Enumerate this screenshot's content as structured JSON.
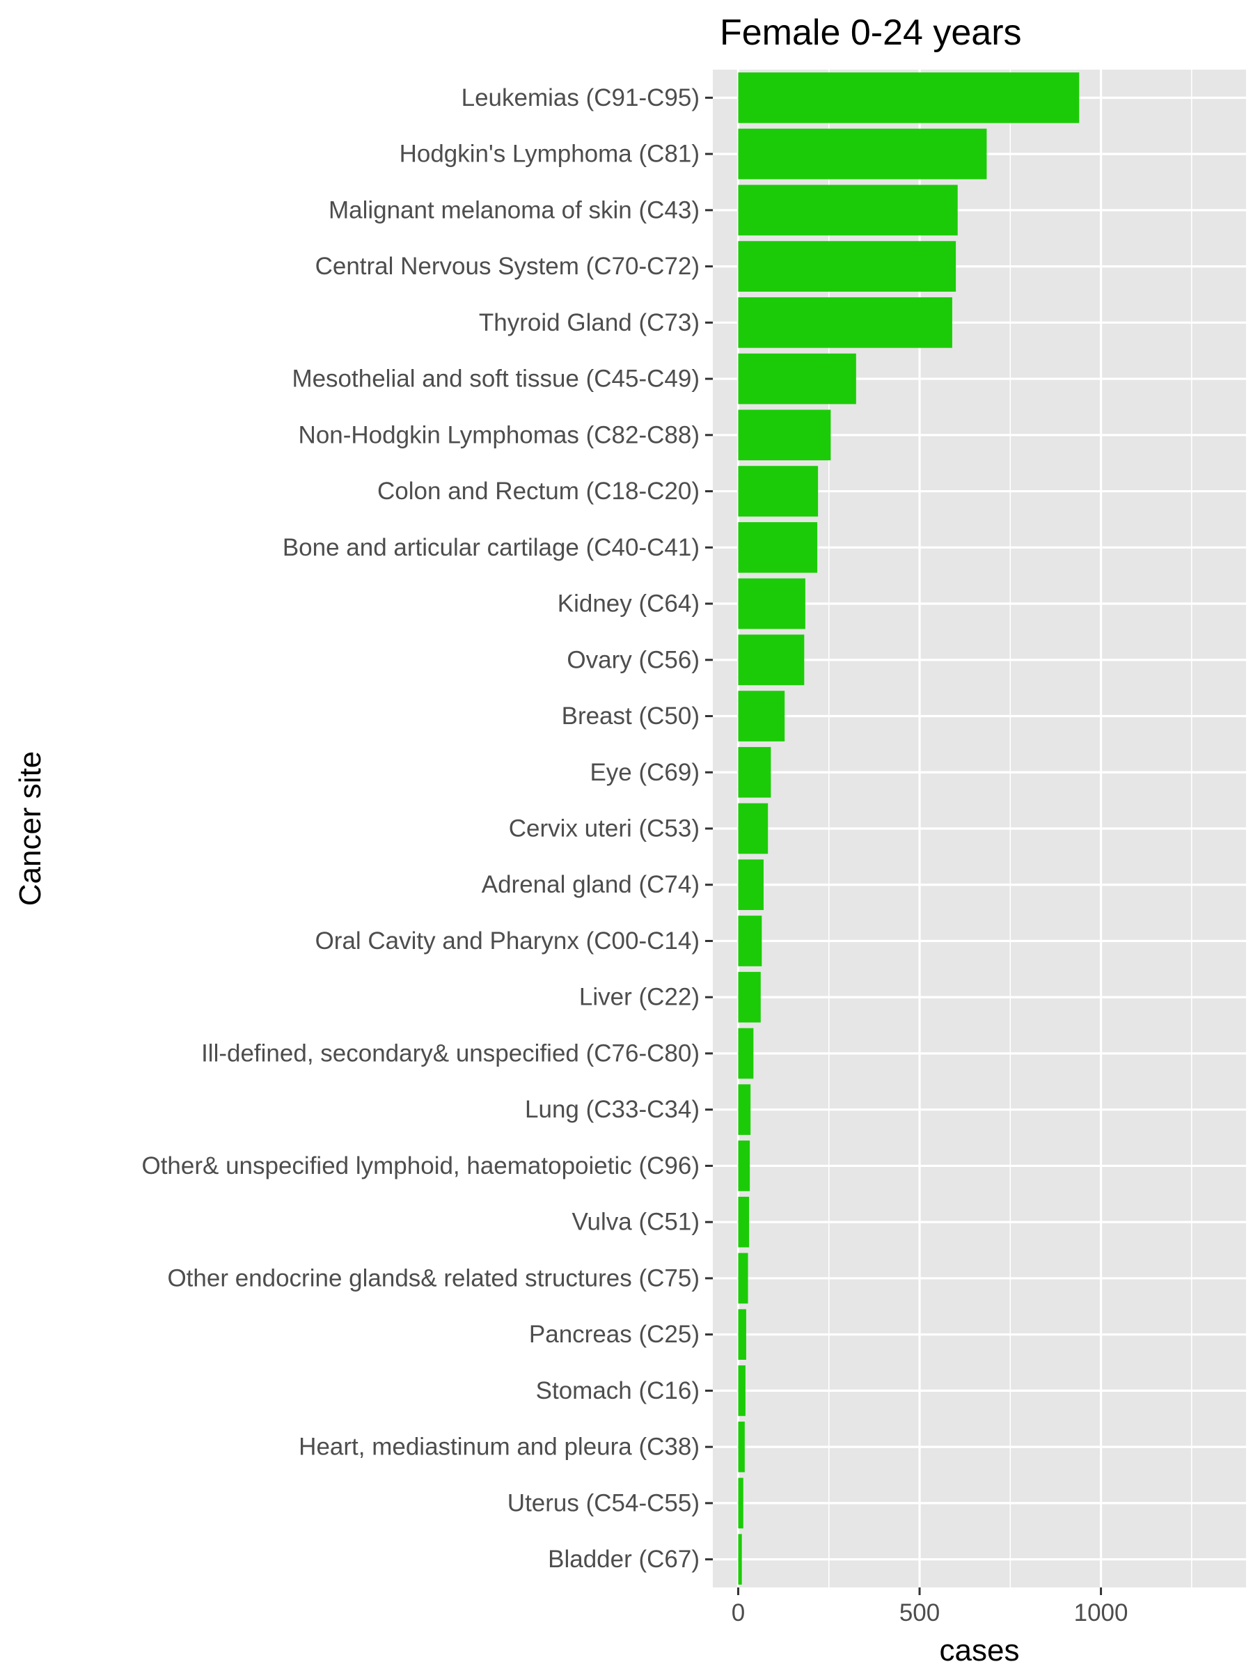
{
  "chart_data": {
    "type": "bar",
    "orientation": "horizontal",
    "title": "Female 0-24 years",
    "xlabel": "cases",
    "ylabel": "Cancer site",
    "xlim": [
      -70,
      1400
    ],
    "x_ticks": [
      0,
      500,
      1000
    ],
    "grid": true,
    "legend": "none",
    "categories": [
      "Leukemias (C91-C95)",
      "Hodgkin's Lymphoma (C81)",
      "Malignant melanoma of skin (C43)",
      "Central Nervous System (C70-C72)",
      "Thyroid Gland (C73)",
      "Mesothelial and soft tissue (C45-C49)",
      "Non-Hodgkin Lymphomas (C82-C88)",
      "Colon and Rectum (C18-C20)",
      "Bone and articular cartilage (C40-C41)",
      "Kidney (C64)",
      "Ovary (C56)",
      "Breast (C50)",
      "Eye (C69)",
      "Cervix uteri (C53)",
      "Adrenal gland (C74)",
      "Oral Cavity and Pharynx (C00-C14)",
      "Liver (C22)",
      "Ill-defined, secondary& unspecified (C76-C80)",
      "Lung (C33-C34)",
      "Other& unspecified lymphoid, haematopoietic (C96)",
      "Vulva (C51)",
      "Other endocrine glands& related structures (C75)",
      "Pancreas (C25)",
      "Stomach (C16)",
      "Heart, mediastinum and pleura (C38)",
      "Uterus (C54-C55)",
      "Bladder (C67)"
    ],
    "values": [
      940,
      685,
      605,
      600,
      590,
      325,
      255,
      220,
      218,
      185,
      182,
      128,
      90,
      82,
      70,
      65,
      62,
      42,
      34,
      32,
      30,
      27,
      22,
      20,
      18,
      14,
      10
    ],
    "colors": {
      "bar": "#1ccb07",
      "panel": "#e6e6e6",
      "grid": "#ffffff",
      "tick_label": "#4d4d4d",
      "tick_mark": "#333333"
    }
  }
}
